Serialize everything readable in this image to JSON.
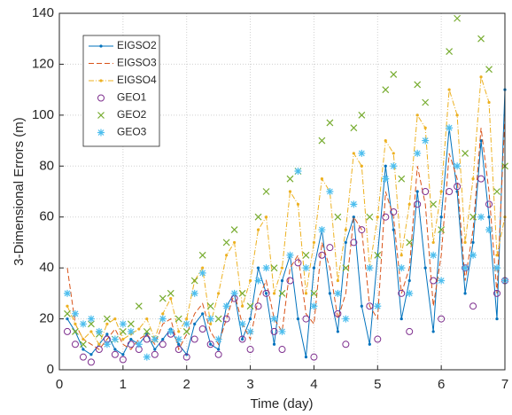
{
  "chart_data": {
    "type": "line",
    "xlabel": "Time (day)",
    "ylabel": "3-Dimensional Errors (m)",
    "x": [
      0.125,
      0.25,
      0.375,
      0.5,
      0.625,
      0.75,
      0.875,
      1,
      1.125,
      1.25,
      1.375,
      1.5,
      1.625,
      1.75,
      1.875,
      2,
      2.125,
      2.25,
      2.375,
      2.5,
      2.625,
      2.75,
      2.875,
      3,
      3.125,
      3.25,
      3.375,
      3.5,
      3.625,
      3.75,
      3.875,
      4,
      4.125,
      4.25,
      4.375,
      4.5,
      4.625,
      4.75,
      4.875,
      5,
      5.125,
      5.25,
      5.375,
      5.5,
      5.625,
      5.75,
      5.875,
      6,
      6.125,
      6.25,
      6.375,
      6.5,
      6.625,
      6.75,
      6.875,
      7
    ],
    "xlim": [
      0,
      7
    ],
    "xticks": [
      0,
      1,
      2,
      3,
      4,
      5,
      6,
      7
    ],
    "ylim": [
      0,
      140
    ],
    "yticks": [
      0,
      20,
      40,
      60,
      80,
      100,
      120,
      140
    ],
    "grid": true,
    "legend": "upper left",
    "series": [
      {
        "name": "EIGSO2",
        "color": "#0072BD",
        "linestyle": "solid",
        "marker": "dot",
        "values": [
          20,
          15,
          8,
          6,
          10,
          14,
          8,
          6,
          12,
          10,
          14,
          8,
          12,
          16,
          10,
          6,
          18,
          22,
          10,
          8,
          25,
          30,
          12,
          20,
          40,
          30,
          10,
          35,
          45,
          20,
          5,
          40,
          55,
          30,
          15,
          50,
          60,
          25,
          10,
          45,
          80,
          55,
          20,
          35,
          70,
          40,
          15,
          60,
          95,
          70,
          30,
          50,
          90,
          60,
          20,
          110
        ]
      },
      {
        "name": "EIGSO3",
        "color": "#D95319",
        "linestyle": "dashed",
        "marker": "none",
        "values": [
          40,
          18,
          12,
          10,
          8,
          12,
          16,
          10,
          8,
          12,
          14,
          10,
          18,
          20,
          8,
          14,
          22,
          26,
          15,
          10,
          20,
          30,
          18,
          12,
          28,
          35,
          20,
          15,
          40,
          45,
          22,
          18,
          50,
          40,
          20,
          30,
          60,
          55,
          25,
          20,
          70,
          60,
          30,
          40,
          80,
          65,
          25,
          45,
          85,
          75,
          35,
          55,
          95,
          70,
          30,
          100
        ]
      },
      {
        "name": "EIGSO4",
        "color": "#EDB120",
        "linestyle": "dashdot",
        "marker": "dot",
        "values": [
          25,
          18,
          12,
          15,
          10,
          18,
          20,
          12,
          14,
          16,
          20,
          12,
          22,
          28,
          15,
          20,
          35,
          40,
          18,
          30,
          45,
          50,
          25,
          35,
          55,
          60,
          30,
          40,
          70,
          65,
          30,
          50,
          75,
          70,
          35,
          55,
          85,
          80,
          40,
          60,
          90,
          85,
          45,
          65,
          100,
          95,
          50,
          70,
          110,
          100,
          50,
          75,
          115,
          105,
          45,
          60
        ]
      },
      {
        "name": "GEO1",
        "color": "#7E2F8E",
        "linestyle": "none",
        "marker": "circle",
        "values": [
          15,
          10,
          5,
          3,
          8,
          12,
          6,
          4,
          10,
          8,
          12,
          6,
          10,
          14,
          8,
          5,
          12,
          16,
          10,
          6,
          20,
          28,
          12,
          8,
          25,
          30,
          15,
          8,
          35,
          42,
          20,
          5,
          45,
          48,
          22,
          10,
          50,
          55,
          25,
          12,
          60,
          62,
          30,
          15,
          65,
          70,
          35,
          20,
          70,
          72,
          40,
          25,
          75,
          65,
          30,
          35
        ]
      },
      {
        "name": "GEO2",
        "color": "#77AC30",
        "linestyle": "none",
        "marker": "x",
        "values": [
          22,
          15,
          10,
          18,
          14,
          20,
          12,
          15,
          18,
          25,
          15,
          12,
          28,
          30,
          20,
          15,
          35,
          45,
          25,
          20,
          50,
          55,
          30,
          25,
          60,
          70,
          40,
          30,
          75,
          78,
          45,
          30,
          90,
          97,
          60,
          40,
          95,
          100,
          60,
          45,
          110,
          116,
          75,
          50,
          112,
          105,
          65,
          55,
          125,
          138,
          85,
          60,
          130,
          118,
          70,
          80
        ]
      },
      {
        "name": "GEO3",
        "color": "#4DBEEE",
        "linestyle": "none",
        "marker": "asterisk",
        "values": [
          30,
          22,
          18,
          20,
          15,
          10,
          12,
          18,
          15,
          10,
          5,
          12,
          20,
          15,
          12,
          18,
          30,
          38,
          20,
          12,
          25,
          30,
          18,
          15,
          35,
          40,
          20,
          15,
          45,
          78,
          40,
          25,
          55,
          70,
          30,
          20,
          65,
          85,
          40,
          25,
          75,
          80,
          40,
          30,
          85,
          90,
          45,
          35,
          95,
          80,
          40,
          45,
          60,
          55,
          40,
          35
        ]
      }
    ]
  }
}
